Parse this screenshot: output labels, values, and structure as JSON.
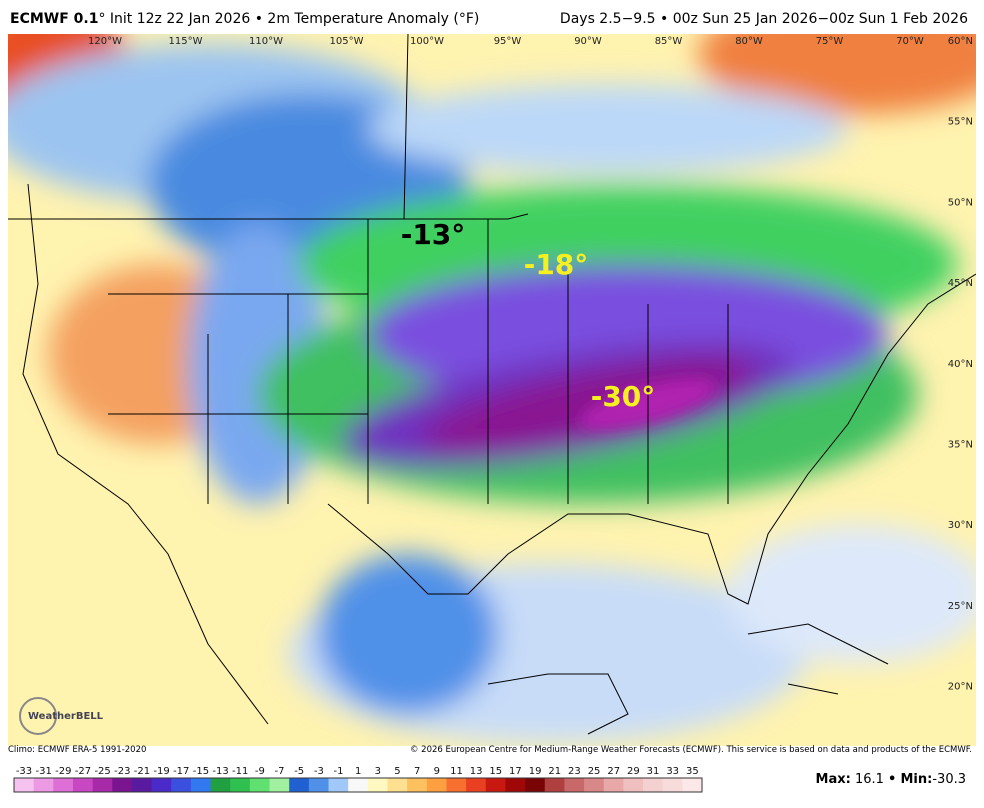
{
  "header": {
    "model": "ECMWF 0.1",
    "title": "° Init 12z 22 Jan 2026 • 2m Temperature Anomaly (°F)",
    "period": "Days 2.5−9.5 • 00z Sun 25 Jan 2026−00z Sun 1 Feb 2026"
  },
  "map": {
    "longitude_labels": [
      "120°W",
      "115°W",
      "110°W",
      "105°W",
      "100°W",
      "95°W",
      "90°W",
      "85°W",
      "80°W",
      "75°W",
      "70°W"
    ],
    "latitude_labels": [
      "60°N",
      "55°N",
      "50°N",
      "45°N",
      "40°N",
      "35°N",
      "30°N",
      "25°N",
      "20°N"
    ],
    "annotations": [
      {
        "text": "-13°",
        "color": "#000000"
      },
      {
        "text": "-18°",
        "color": "#f5f020"
      },
      {
        "text": "-30°",
        "color": "#f5f020"
      }
    ],
    "logo": "WeatherBELL"
  },
  "footer": {
    "climo": "Climo: ECMWF ERA-5 1991-2020",
    "copyright": "© 2026 European Centre for Medium-Range Weather Forecasts (ECMWF). This service is based on data and products of the ECMWF."
  },
  "colorbar": {
    "labels": [
      "-33",
      "-31",
      "-29",
      "-27",
      "-25",
      "-23",
      "-21",
      "-19",
      "-17",
      "-15",
      "-13",
      "-11",
      "-9",
      "-7",
      "-5",
      "-3",
      "-1",
      "1",
      "3",
      "5",
      "7",
      "9",
      "11",
      "13",
      "15",
      "17",
      "19",
      "21",
      "23",
      "25",
      "27",
      "29",
      "31",
      "33",
      "35"
    ],
    "colors": [
      "#f6c3f0",
      "#ec9ae4",
      "#de6fd6",
      "#c848c4",
      "#a82aa8",
      "#7a1490",
      "#5a1aa0",
      "#4a2ac8",
      "#3c50e0",
      "#3278f0",
      "#20a040",
      "#30c050",
      "#60e070",
      "#a0f0a0",
      "#2060d0",
      "#5090e8",
      "#a0c8f8",
      "#f8f8f8",
      "#fff8c0",
      "#ffe090",
      "#ffc060",
      "#ffa040",
      "#f87030",
      "#e84020",
      "#c81810",
      "#a00808",
      "#780404",
      "#b04040",
      "#c86868",
      "#d88888",
      "#e8a8a8",
      "#f0c0c0",
      "#f4d0d0",
      "#f8dcdc",
      "#fce8e8"
    ]
  },
  "stats": {
    "max_label": "Max:",
    "max": "16.1",
    "separator": "•",
    "min_label": "Min:",
    "min": "-30.3"
  }
}
